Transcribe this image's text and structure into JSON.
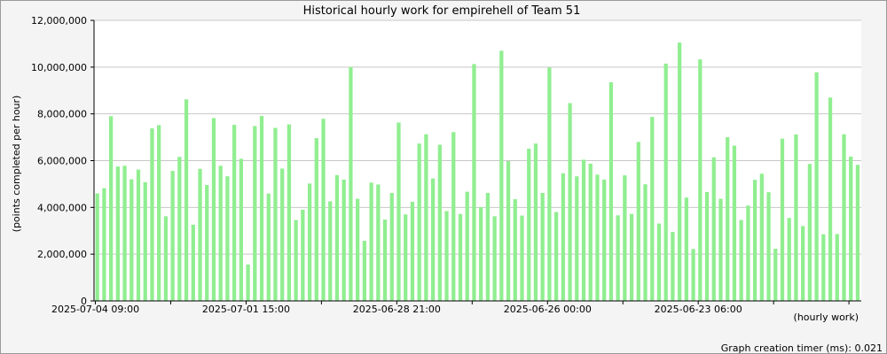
{
  "footer": {
    "timer_text": "Graph creation timer (ms): 0.021"
  },
  "chart_data": {
    "type": "bar",
    "title": "Historical hourly work for empirehell of Team 51",
    "xlabel": "(hourly work)",
    "ylabel": "(points completed per hour)",
    "ylim": [
      0,
      12000000
    ],
    "yticks": [
      "0",
      "2,000,000",
      "4,000,000",
      "6,000,000",
      "8,000,000",
      "10,000,000",
      "12,000,000"
    ],
    "xtick_labels": [
      {
        "index": 0,
        "label": "2025-07-04 09:00"
      },
      {
        "index": 22,
        "label": "2025-07-01 15:00"
      },
      {
        "index": 44,
        "label": "2025-06-28 21:00"
      },
      {
        "index": 66,
        "label": "2025-06-26 00:00"
      },
      {
        "index": 88,
        "label": "2025-06-23 06:00"
      }
    ],
    "grid": true,
    "bar_color": "#90ee90",
    "values": [
      4600000,
      4820000,
      7900000,
      5750000,
      5780000,
      5200000,
      5620000,
      5080000,
      7380000,
      7520000,
      3620000,
      5560000,
      6160000,
      8620000,
      3260000,
      5650000,
      4960000,
      7820000,
      5780000,
      5330000,
      7530000,
      6080000,
      1560000,
      7480000,
      7910000,
      4590000,
      7400000,
      5660000,
      7550000,
      3460000,
      3900000,
      5020000,
      6960000,
      7790000,
      4260000,
      5380000,
      5190000,
      10000000,
      4370000,
      2570000,
      5060000,
      4980000,
      3480000,
      4620000,
      7630000,
      3700000,
      4240000,
      6730000,
      7130000,
      5240000,
      6680000,
      3840000,
      7220000,
      3720000,
      4670000,
      10130000,
      4010000,
      4620000,
      3620000,
      10700000,
      5980000,
      4350000,
      3650000,
      6510000,
      6730000,
      4620000,
      9980000,
      3800000,
      5460000,
      8460000,
      5330000,
      6040000,
      5870000,
      5400000,
      5190000,
      9350000,
      3660000,
      5370000,
      3720000,
      6800000,
      4990000,
      7870000,
      3310000,
      10150000,
      2950000,
      11050000,
      4420000,
      2220000,
      10330000,
      4660000,
      6140000,
      4370000,
      7000000,
      6640000,
      3460000,
      4080000,
      5180000,
      5440000,
      4650000,
      2230000,
      6940000,
      3550000,
      7120000,
      3200000,
      5860000,
      9780000,
      2850000,
      8700000,
      2860000,
      7130000,
      6170000,
      5820000
    ]
  }
}
